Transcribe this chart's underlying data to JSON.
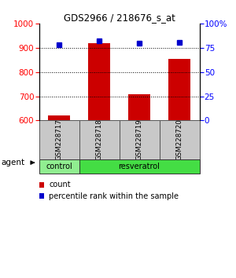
{
  "title": "GDS2966 / 218676_s_at",
  "samples": [
    "GSM228717",
    "GSM228718",
    "GSM228719",
    "GSM228720"
  ],
  "count_values": [
    620,
    920,
    710,
    855
  ],
  "percentile_values": [
    78,
    82,
    80,
    81
  ],
  "ylim_left": [
    600,
    1000
  ],
  "ylim_right": [
    0,
    100
  ],
  "yticks_left": [
    600,
    700,
    800,
    900,
    1000
  ],
  "yticks_right": [
    0,
    25,
    50,
    75,
    100
  ],
  "bar_color": "#cc0000",
  "dot_color": "#0000cc",
  "agent_row": [
    {
      "label": "control",
      "color": "#90ee90",
      "span": [
        0,
        1
      ]
    },
    {
      "label": "resveratrol",
      "color": "#44dd44",
      "span": [
        1,
        4
      ]
    }
  ],
  "gsm_bg_color": "#c8c8c8",
  "legend_count_label": "count",
  "legend_pct_label": "percentile rank within the sample",
  "agent_label": "agent",
  "bar_width": 0.55
}
